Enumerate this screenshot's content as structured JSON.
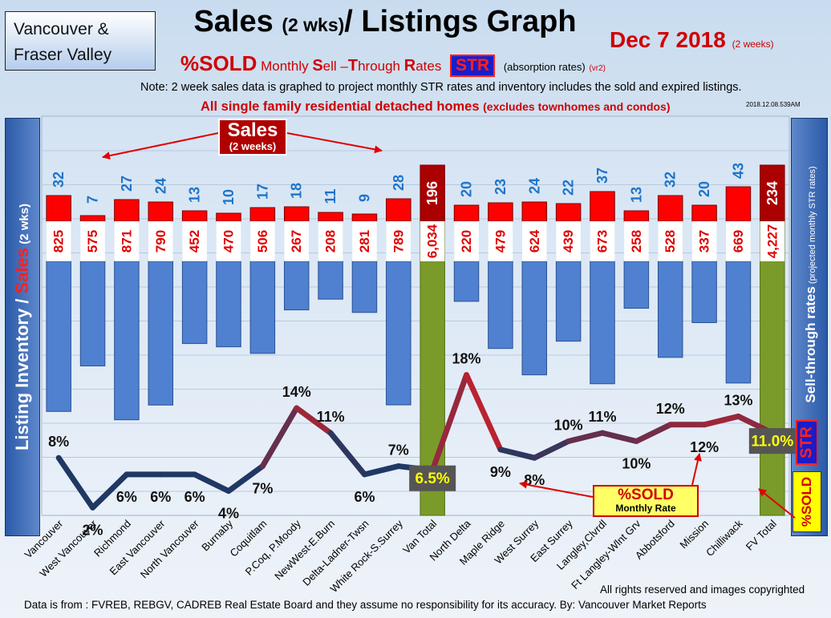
{
  "header": {
    "region_line1": "Vancouver &",
    "region_line2": "Fraser Valley",
    "title_main": "Sales",
    "title_small": "(2 wks)",
    "title_rest": "/ Listings Graph",
    "date": "Dec 7 2018",
    "date_note": "(2 weeks)",
    "subtitle_sold": "%SOLD",
    "subtitle_text_parts": [
      "Monthly ",
      "S",
      "ell –",
      "T",
      "hrough ",
      "R",
      "ates"
    ],
    "str_label": "STR",
    "absorption": "(absorption rates)",
    "version": "(vr2)",
    "note": "Note: 2 week sales data is graphed to project monthly STR rates and inventory includes the sold and expired listings.",
    "note2_main": "All single family residential detached homes",
    "note2_small": "(excludes townhomes and condos)",
    "stamp": "2018.12.08.539AM"
  },
  "axes": {
    "left_label_a": "Listing Inventory / ",
    "left_label_b": "Sales",
    "left_label_c": " (2 wks)",
    "right_label_a": "Sell-through rates",
    "right_label_b": " (projected monthly STR rates)",
    "str_tag": "STR",
    "sold_tag": "%SOLD"
  },
  "legend": {
    "sales_title": "Sales",
    "sales_sub": "(2 weeks)",
    "sold_title": "%SOLD",
    "sold_sub": "Monthly Rate"
  },
  "footer": {
    "rights": "All rights reserved and  images copyrighted",
    "source": "Data is from : FVREB, REBGV, CADREB Real Estate Board and they assume no responsibility for its accuracy. By: Vancouver Market Reports"
  },
  "chart_data": {
    "type": "bar",
    "categories": [
      "Vancouver",
      "West Vancouver",
      "Richmond",
      "East Vancouver",
      "North Vancouver",
      "Burnaby",
      "Coquitlam",
      "P.Coq, P.Moody",
      "NewWest-E.Burn",
      "Delta-Ladner-Twsn",
      "White Rock-S.Surrey",
      "Van Total",
      "North Delta",
      "Maple Ridge",
      "West Surrey",
      "East Surrey",
      "Langley,Clvrdl",
      "Ft Langley-Wlnt Grv",
      "Abbotsford",
      "Mission",
      "Chilliwack",
      "FV Total"
    ],
    "totals": [
      "Van Total",
      "FV Total"
    ],
    "series": [
      {
        "name": "Sales",
        "values": [
          32,
          7,
          27,
          24,
          13,
          10,
          17,
          18,
          11,
          9,
          28,
          196,
          20,
          23,
          24,
          22,
          37,
          13,
          32,
          20,
          43,
          234
        ]
      },
      {
        "name": "Listing Inventory",
        "values": [
          825,
          575,
          871,
          790,
          452,
          470,
          506,
          267,
          208,
          281,
          789,
          6034,
          220,
          479,
          624,
          439,
          673,
          258,
          528,
          337,
          669,
          4227
        ]
      },
      {
        "name": "%SOLD",
        "values": [
          8,
          2,
          6,
          6,
          6,
          4,
          7,
          14,
          11,
          6,
          7,
          6.5,
          18,
          9,
          8,
          10,
          11,
          10,
          12,
          12,
          13,
          11.0
        ]
      }
    ],
    "sales_labels": [
      "32",
      "7",
      "27",
      "24",
      "13",
      "10",
      "17",
      "18",
      "11",
      "9",
      "28",
      "196",
      "20",
      "23",
      "24",
      "22",
      "37",
      "13",
      "32",
      "20",
      "43",
      "234"
    ],
    "inventory_labels": [
      "825",
      "575",
      "871",
      "790",
      "452",
      "470",
      "506",
      "267",
      "208",
      "281",
      "789",
      "6,034",
      "220",
      "479",
      "624",
      "439",
      "673",
      "258",
      "528",
      "337",
      "669",
      "4,227"
    ],
    "sold_labels": [
      "8%",
      "2%",
      "6%",
      "6%",
      "6%",
      "4%",
      "7%",
      "14%",
      "11%",
      "6%",
      "7%",
      "6.5%",
      "18%",
      "9%",
      "8%",
      "10%",
      "11%",
      "10%",
      "12%",
      "12%",
      "13%",
      "11.0%"
    ],
    "colors": {
      "sales": "#ff0000",
      "sales_total": "#aa0000",
      "inventory": "#4f81d0",
      "inventory_total": "#7a9a2a",
      "line_low": "#1f3864",
      "line_high": "#ff1a1a",
      "sales_label": "#1f74c8",
      "inventory_label": "#e00000"
    }
  }
}
